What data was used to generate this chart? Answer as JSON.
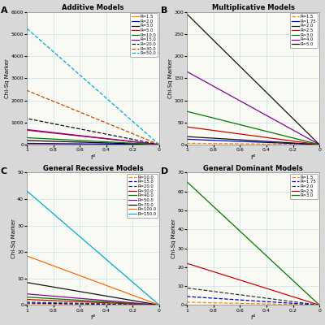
{
  "panel_A": {
    "title": "Additive Models",
    "label": "A",
    "ylabel": "Chi-Sq Marker",
    "xlabel": "r²",
    "ylim": [
      0,
      6000
    ],
    "yticks": [
      0,
      1000,
      2000,
      3000,
      4000,
      5000,
      6000
    ],
    "series": [
      {
        "R": "1.5",
        "color": "#FF8800",
        "linestyle": "solid",
        "max_val": 18
      },
      {
        "R": "2.0",
        "color": "#0000CC",
        "linestyle": "solid",
        "max_val": 55
      },
      {
        "R": "3.0",
        "color": "#000000",
        "linestyle": "solid",
        "max_val": 185
      },
      {
        "R": "5.0",
        "color": "#CC0000",
        "linestyle": "solid",
        "max_val": 650
      },
      {
        "R": "10.0",
        "color": "#007700",
        "linestyle": "solid",
        "max_val": 310
      },
      {
        "R": "15.0",
        "color": "#880099",
        "linestyle": "solid",
        "max_val": 680
      },
      {
        "R": "20.0",
        "color": "#111111",
        "linestyle": "dashed",
        "max_val": 1180
      },
      {
        "R": "30.0",
        "color": "#CC4400",
        "linestyle": "dashed",
        "max_val": 2450
      },
      {
        "R": "50.0",
        "color": "#00AACC",
        "linestyle": "dashed",
        "max_val": 5250
      }
    ]
  },
  "panel_B": {
    "title": "Multiplicative Models",
    "label": "B",
    "ylabel": "Chi-Sq Marker",
    "xlabel": "r²",
    "ylim": [
      0,
      300
    ],
    "yticks": [
      0,
      50,
      100,
      150,
      200,
      250,
      300
    ],
    "series": [
      {
        "R": "1.5",
        "color": "#FF8800",
        "linestyle": "dashed",
        "max_val": 3
      },
      {
        "R": "1.75",
        "color": "#0000CC",
        "linestyle": "solid",
        "max_val": 12
      },
      {
        "R": "2.0",
        "color": "#111111",
        "linestyle": "solid",
        "max_val": 18
      },
      {
        "R": "2.5",
        "color": "#CC0000",
        "linestyle": "solid",
        "max_val": 40
      },
      {
        "R": "3.0",
        "color": "#007700",
        "linestyle": "solid",
        "max_val": 75
      },
      {
        "R": "4.0",
        "color": "#880099",
        "linestyle": "solid",
        "max_val": 165
      },
      {
        "R": "5.0",
        "color": "#111111",
        "linestyle": "solid",
        "max_val": 295
      }
    ]
  },
  "panel_C": {
    "title": "General Recessive Models",
    "label": "C",
    "ylabel": "Chi-Sq Marker",
    "xlabel": "r²",
    "ylim": [
      0,
      50
    ],
    "yticks": [
      0,
      10,
      20,
      30,
      40,
      50
    ],
    "series": [
      {
        "R": "10.0",
        "color": "#FF8800",
        "linestyle": "dashed",
        "max_val": 0.45
      },
      {
        "R": "15.0",
        "color": "#0000CC",
        "linestyle": "dashed",
        "max_val": 0.75
      },
      {
        "R": "20.0",
        "color": "#333333",
        "linestyle": "dashed",
        "max_val": 1.1
      },
      {
        "R": "30.0",
        "color": "#CC0000",
        "linestyle": "solid",
        "max_val": 2.1
      },
      {
        "R": "40.0",
        "color": "#007700",
        "linestyle": "solid",
        "max_val": 3.0
      },
      {
        "R": "50.0",
        "color": "#880099",
        "linestyle": "solid",
        "max_val": 4.2
      },
      {
        "R": "70.0",
        "color": "#111111",
        "linestyle": "solid",
        "max_val": 8.5
      },
      {
        "R": "100.0",
        "color": "#FF6600",
        "linestyle": "solid",
        "max_val": 18.5
      },
      {
        "R": "150.0",
        "color": "#00AACC",
        "linestyle": "solid",
        "max_val": 43
      }
    ]
  },
  "panel_D": {
    "title": "General Dominant Models",
    "label": "D",
    "ylabel": "Chi-Sq Marker",
    "xlabel": "r²",
    "ylim": [
      0,
      70
    ],
    "yticks": [
      0,
      10,
      20,
      30,
      40,
      50,
      60,
      70
    ],
    "series": [
      {
        "R": "1.5",
        "color": "#FF8800",
        "linestyle": "dashed",
        "max_val": 1.5
      },
      {
        "R": "1.75",
        "color": "#0000CC",
        "linestyle": "dashed",
        "max_val": 4.5
      },
      {
        "R": "2.0",
        "color": "#333333",
        "linestyle": "dashed",
        "max_val": 9
      },
      {
        "R": "2.5",
        "color": "#CC0000",
        "linestyle": "solid",
        "max_val": 22
      },
      {
        "R": "3.0",
        "color": "#007700",
        "linestyle": "solid",
        "max_val": 65
      }
    ]
  },
  "fig_bg": "#D8D8D8",
  "panel_bg": "#FAFAF5",
  "grid_color": "#B0D8E8"
}
